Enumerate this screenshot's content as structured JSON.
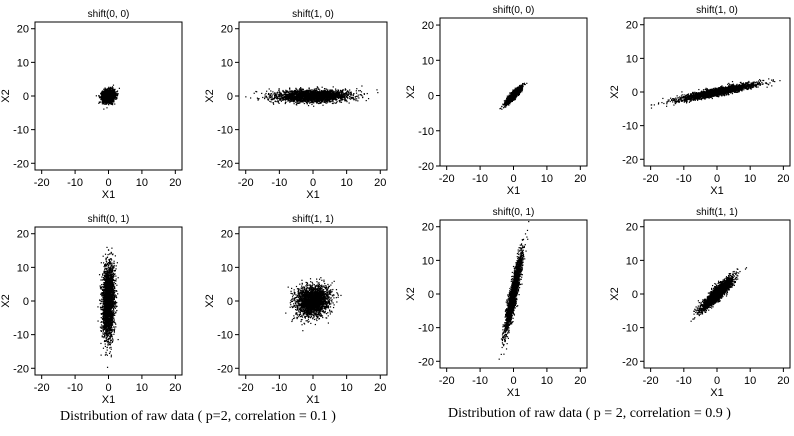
{
  "figure": {
    "caption_left": "Distribution of raw data ( p=2, correlation = 0.1 )",
    "caption_right": "Distribution of raw data ( p = 2, correlation = 0.9 )"
  },
  "chart_data": [
    {
      "type": "scatter",
      "group": "correlation = 0.1",
      "title": "shift(0, 0)",
      "xlabel": "X1",
      "ylabel": "X2",
      "xlim": [
        -22,
        22
      ],
      "ylim": [
        -22,
        22
      ],
      "xticks": [
        -20,
        -10,
        0,
        10,
        20
      ],
      "yticks": [
        -20,
        -10,
        0,
        10,
        20
      ],
      "grid": false,
      "legend": "none",
      "color": "#000000",
      "n_points": 2500,
      "sd_x": 0.9,
      "sd_y": 0.9,
      "correlation": 0.1
    },
    {
      "type": "scatter",
      "group": "correlation = 0.1",
      "title": "shift(1, 0)",
      "xlabel": "X1",
      "ylabel": "X2",
      "xlim": [
        -22,
        22
      ],
      "ylim": [
        -22,
        22
      ],
      "xticks": [
        -20,
        -10,
        0,
        10,
        20
      ],
      "yticks": [
        -20,
        -10,
        0,
        10,
        20
      ],
      "grid": false,
      "legend": "none",
      "color": "#000000",
      "n_points": 2500,
      "sd_x": 5.5,
      "sd_y": 0.9,
      "correlation": 0.1
    },
    {
      "type": "scatter",
      "group": "correlation = 0.1",
      "title": "shift(0, 1)",
      "xlabel": "X1",
      "ylabel": "X2",
      "xlim": [
        -22,
        22
      ],
      "ylim": [
        -22,
        22
      ],
      "xticks": [
        -20,
        -10,
        0,
        10,
        20
      ],
      "yticks": [
        -20,
        -10,
        0,
        10,
        20
      ],
      "grid": false,
      "legend": "none",
      "color": "#000000",
      "n_points": 2500,
      "sd_x": 0.9,
      "sd_y": 5.5,
      "correlation": 0.1
    },
    {
      "type": "scatter",
      "group": "correlation = 0.1",
      "title": "shift(1, 1)",
      "xlabel": "X1",
      "ylabel": "X2",
      "xlim": [
        -22,
        22
      ],
      "ylim": [
        -22,
        22
      ],
      "xticks": [
        -20,
        -10,
        0,
        10,
        20
      ],
      "yticks": [
        -20,
        -10,
        0,
        10,
        20
      ],
      "grid": false,
      "legend": "none",
      "color": "#000000",
      "n_points": 2500,
      "sd_x": 2.4,
      "sd_y": 2.2,
      "correlation": 0.1
    },
    {
      "type": "scatter",
      "group": "correlation = 0.9",
      "title": "shift(0, 0)",
      "xlabel": "X1",
      "ylabel": "X2",
      "xlim": [
        -22,
        22
      ],
      "ylim": [
        -20,
        22
      ],
      "xticks": [
        -20,
        -10,
        0,
        10,
        20
      ],
      "yticks": [
        -20,
        -10,
        0,
        10,
        20
      ],
      "grid": false,
      "legend": "none",
      "color": "#000000",
      "n_points": 2500,
      "sd_x": 1.1,
      "sd_y": 1.1,
      "correlation": 0.9
    },
    {
      "type": "scatter",
      "group": "correlation = 0.9",
      "title": "shift(1, 0)",
      "xlabel": "X1",
      "ylabel": "X2",
      "xlim": [
        -22,
        22
      ],
      "ylim": [
        -22,
        22
      ],
      "xticks": [
        -20,
        -10,
        0,
        10,
        20
      ],
      "yticks": [
        -20,
        -10,
        0,
        10,
        20
      ],
      "grid": false,
      "legend": "none",
      "color": "#000000",
      "n_points": 2500,
      "sd_x": 5.5,
      "sd_y": 1.2,
      "correlation": 0.9
    },
    {
      "type": "scatter",
      "group": "correlation = 0.9",
      "title": "shift(0, 1)",
      "xlabel": "X1",
      "ylabel": "X2",
      "xlim": [
        -22,
        22
      ],
      "ylim": [
        -22,
        22
      ],
      "xticks": [
        -20,
        -10,
        0,
        10,
        20
      ],
      "yticks": [
        -20,
        -10,
        0,
        10,
        20
      ],
      "grid": false,
      "legend": "none",
      "color": "#000000",
      "n_points": 2500,
      "sd_x": 1.2,
      "sd_y": 5.5,
      "correlation": 0.9
    },
    {
      "type": "scatter",
      "group": "correlation = 0.9",
      "title": "shift(1, 1)",
      "xlabel": "X1",
      "ylabel": "X2",
      "xlim": [
        -22,
        22
      ],
      "ylim": [
        -22,
        22
      ],
      "xticks": [
        -20,
        -10,
        0,
        10,
        20
      ],
      "yticks": [
        -20,
        -10,
        0,
        10,
        20
      ],
      "grid": false,
      "legend": "none",
      "color": "#000000",
      "n_points": 2500,
      "sd_x": 2.3,
      "sd_y": 2.3,
      "correlation": 0.9
    }
  ]
}
